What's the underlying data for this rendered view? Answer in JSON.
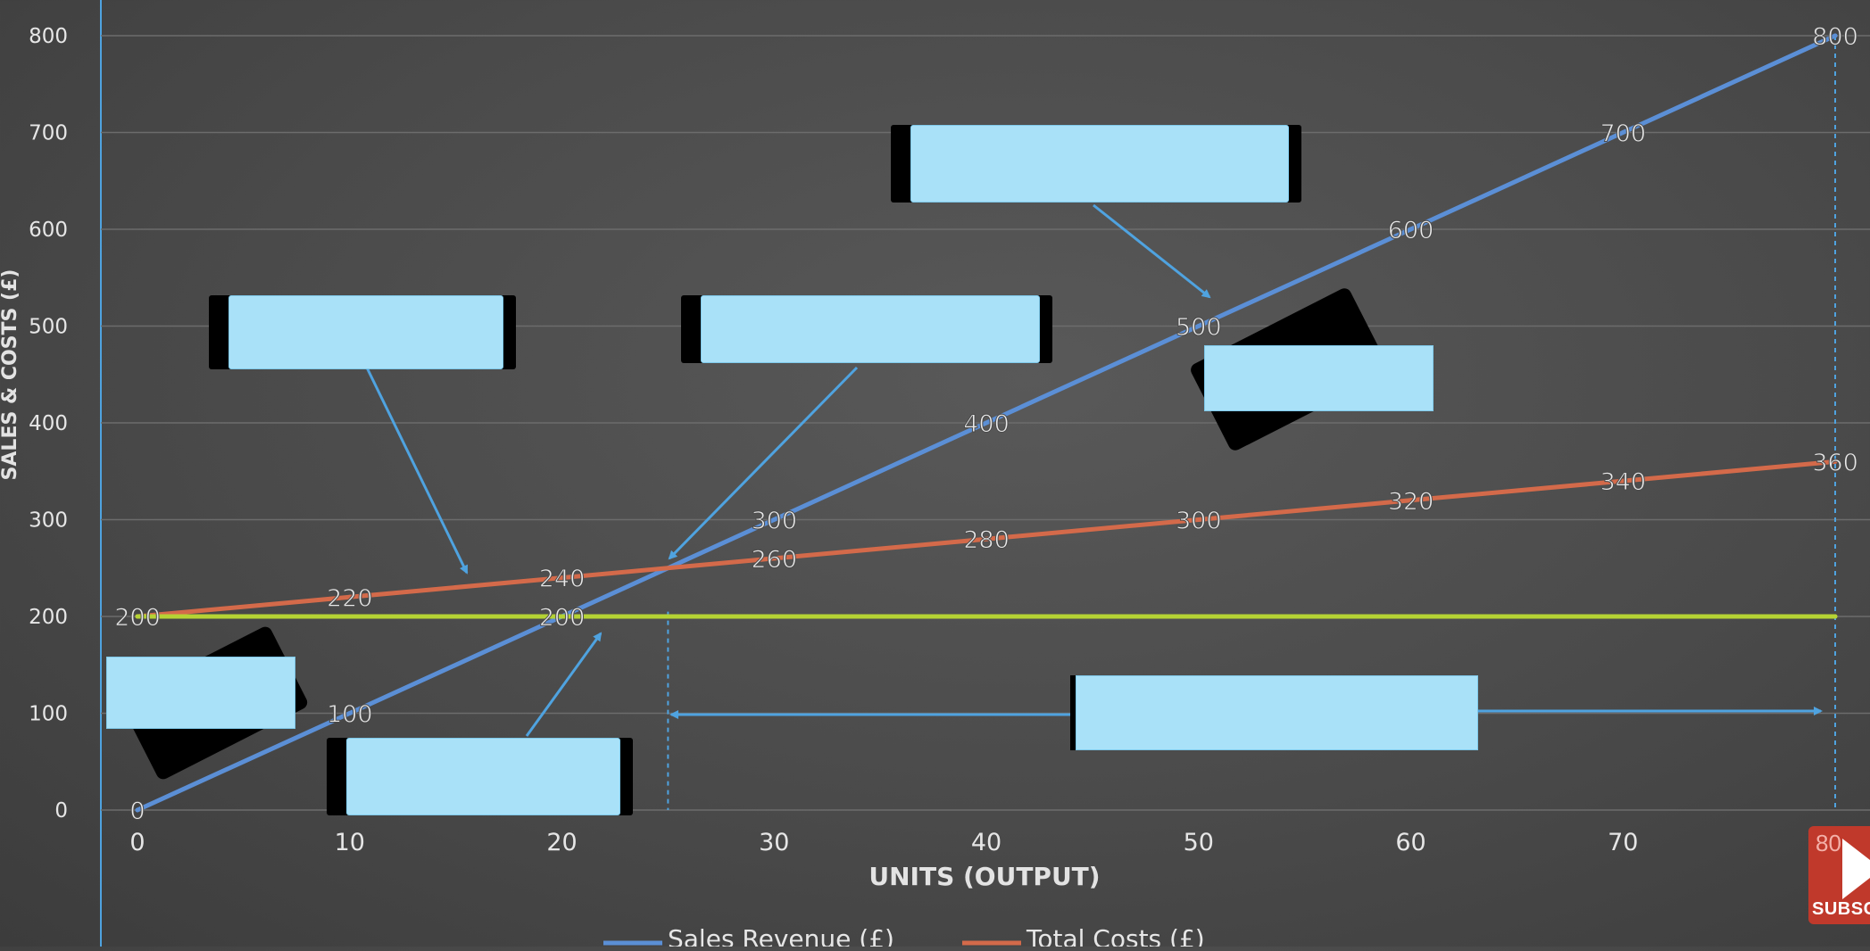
{
  "chart_data": {
    "type": "line",
    "xlabel": "UNITS (OUTPUT)",
    "ylabel": "SALES & COSTS (£)",
    "xlim": [
      0,
      80
    ],
    "ylim": [
      0,
      800
    ],
    "x_ticks": [
      "0",
      "10",
      "20",
      "30",
      "40",
      "50",
      "60",
      "70",
      "80"
    ],
    "y_ticks": [
      "0",
      "100",
      "200",
      "300",
      "400",
      "500",
      "600",
      "700",
      "800"
    ],
    "grid": true,
    "legend_position": "bottom",
    "x": [
      0,
      10,
      20,
      30,
      40,
      50,
      60,
      70,
      80
    ],
    "series": [
      {
        "name": "Sales Revenue (£)",
        "color": "#5b8fd6",
        "values": [
          0,
          100,
          200,
          300,
          400,
          500,
          600,
          700,
          800
        ],
        "labels": [
          "0",
          "100",
          "200",
          "300",
          "400",
          "500",
          "600",
          "700",
          "800"
        ]
      },
      {
        "name": "Total Costs (£)",
        "color": "#d46a4a",
        "values": [
          200,
          220,
          240,
          260,
          280,
          300,
          320,
          340,
          360
        ],
        "labels": [
          "200",
          "220",
          "240",
          "260",
          "280",
          "300",
          "320",
          "340",
          "360"
        ]
      },
      {
        "name": "",
        "color": "#b5d334",
        "values": [
          200,
          200,
          200,
          200,
          200,
          200,
          200,
          200,
          200
        ]
      }
    ],
    "reference_lines": {
      "break_even_x": 25,
      "end_x": 80
    }
  },
  "overlay": {
    "subscribe_text": "SUBSC",
    "subscribe_peek_label": "80"
  }
}
